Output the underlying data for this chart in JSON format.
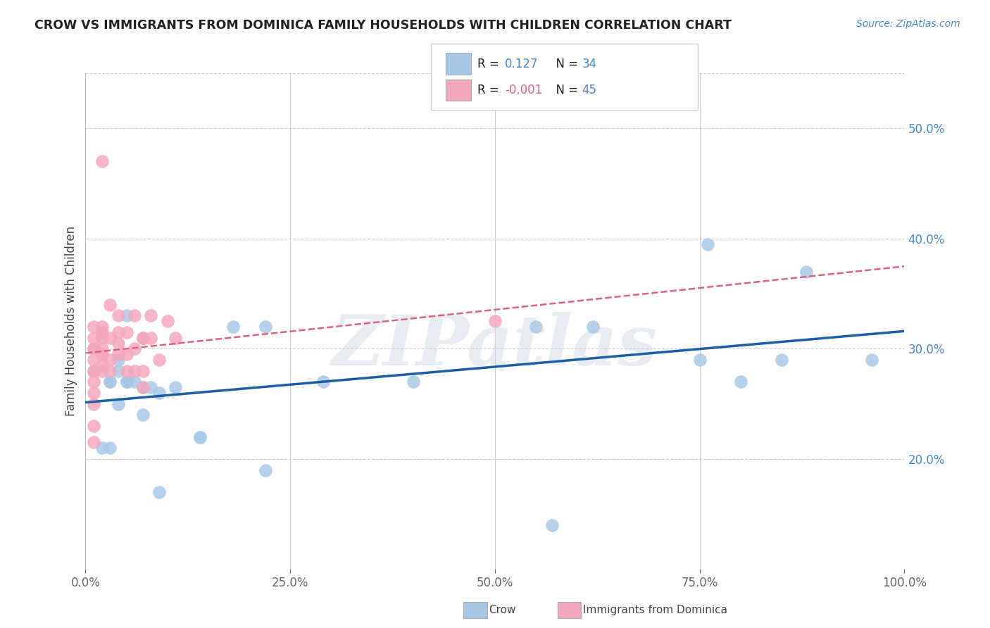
{
  "title": "CROW VS IMMIGRANTS FROM DOMINICA FAMILY HOUSEHOLDS WITH CHILDREN CORRELATION CHART",
  "source": "Source: ZipAtlas.com",
  "ylabel": "Family Households with Children",
  "crow_R": 0.127,
  "crow_N": 34,
  "dom_R": -0.001,
  "dom_N": 45,
  "xlim": [
    0,
    1.0
  ],
  "ylim": [
    0.1,
    0.55
  ],
  "xticks": [
    0.0,
    0.25,
    0.5,
    0.75,
    1.0
  ],
  "xticklabels": [
    "0.0%",
    "25.0%",
    "50.0%",
    "75.0%",
    "100.0%"
  ],
  "yticks_right": [
    0.2,
    0.3,
    0.4,
    0.5
  ],
  "ytick_right_labels": [
    "20.0%",
    "30.0%",
    "40.0%",
    "50.0%"
  ],
  "crow_color": "#a8c8e8",
  "dom_color": "#f4a8be",
  "crow_line_color": "#1a5fa8",
  "dom_line_color": "#e06080",
  "background_color": "#ffffff",
  "grid_color": "#cccccc",
  "crow_x": [
    0.02,
    0.03,
    0.03,
    0.04,
    0.04,
    0.04,
    0.05,
    0.05,
    0.05,
    0.06,
    0.07,
    0.07,
    0.08,
    0.09,
    0.11,
    0.14,
    0.14,
    0.22,
    0.22,
    0.29,
    0.4,
    0.55,
    0.62,
    0.75,
    0.76,
    0.8,
    0.85,
    0.88,
    0.96,
    0.03,
    0.05,
    0.09,
    0.18,
    0.57
  ],
  "crow_y": [
    0.21,
    0.27,
    0.21,
    0.28,
    0.25,
    0.29,
    0.33,
    0.27,
    0.27,
    0.27,
    0.265,
    0.24,
    0.265,
    0.26,
    0.265,
    0.22,
    0.22,
    0.19,
    0.32,
    0.27,
    0.27,
    0.32,
    0.32,
    0.29,
    0.395,
    0.27,
    0.29,
    0.37,
    0.29,
    0.27,
    0.27,
    0.17,
    0.32,
    0.14
  ],
  "dom_x": [
    0.01,
    0.01,
    0.01,
    0.01,
    0.01,
    0.01,
    0.01,
    0.01,
    0.01,
    0.01,
    0.01,
    0.01,
    0.02,
    0.02,
    0.02,
    0.02,
    0.02,
    0.02,
    0.02,
    0.02,
    0.02,
    0.03,
    0.03,
    0.03,
    0.03,
    0.04,
    0.04,
    0.04,
    0.04,
    0.05,
    0.05,
    0.05,
    0.06,
    0.06,
    0.06,
    0.07,
    0.07,
    0.07,
    0.07,
    0.08,
    0.08,
    0.09,
    0.1,
    0.11,
    0.5
  ],
  "dom_y": [
    0.28,
    0.28,
    0.29,
    0.3,
    0.31,
    0.3,
    0.32,
    0.27,
    0.26,
    0.25,
    0.23,
    0.215,
    0.295,
    0.285,
    0.295,
    0.28,
    0.3,
    0.31,
    0.315,
    0.32,
    0.47,
    0.28,
    0.29,
    0.31,
    0.34,
    0.295,
    0.305,
    0.315,
    0.33,
    0.28,
    0.295,
    0.315,
    0.3,
    0.28,
    0.33,
    0.28,
    0.265,
    0.31,
    0.31,
    0.31,
    0.33,
    0.29,
    0.325,
    0.31,
    0.325
  ],
  "watermark": "ZIPatlas",
  "watermark_color": "#d0dde8"
}
